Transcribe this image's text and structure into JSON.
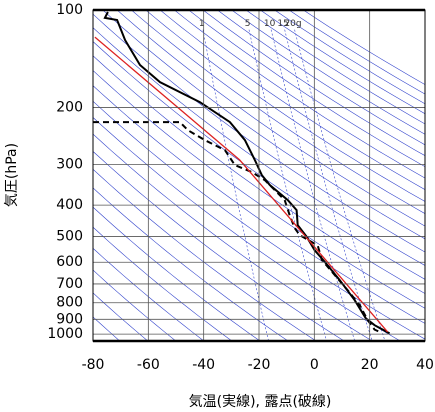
{
  "chart_data": {
    "type": "line",
    "y_label": "気圧(hPa)",
    "x_label": "気温(実線), 露点(破線)",
    "xlim": [
      -80,
      40
    ],
    "xticks": [
      -80,
      -60,
      -40,
      -20,
      0,
      20,
      40
    ],
    "ylim": [
      100,
      1050
    ],
    "y_log": true,
    "y_inverted": true,
    "yticks": [
      100,
      200,
      300,
      400,
      500,
      600,
      700,
      800,
      900,
      1000
    ],
    "grid": true,
    "mixing_ratio_lines": [
      1,
      5,
      10,
      15,
      {
        "value": 20,
        "label": "20g"
      }
    ],
    "mixing_ratio_color": "#3344cc",
    "series": [
      {
        "color": "#000000",
        "style": "solid",
        "x": [
          -74.6,
          -75.7,
          -71.3,
          -68.4,
          -63.0,
          -55.8,
          -41.4,
          -30.5,
          -25.1,
          -21.5,
          -19.0,
          -16.1,
          -9.6,
          -6.4,
          -6.0,
          -2.7,
          0.1,
          3.8,
          9.2,
          14.6,
          18.6,
          21.8,
          27.2
        ],
        "values": [
          101.4,
          105.8,
          107.4,
          123.8,
          147.8,
          166.9,
          192.4,
          221.7,
          251.9,
          290.0,
          323.1,
          346.6,
          385.8,
          414.4,
          461.0,
          502.0,
          550.9,
          598.8,
          681.5,
          785.6,
          893.6,
          938.5,
          994.9
        ]
      },
      {
        "color": "#000000",
        "style": "dashed",
        "x": [
          -80,
          -48.6,
          -45.7,
          -39.6,
          -32.3,
          -28.7,
          -22.6,
          -17.9,
          -10.7,
          -8.9,
          -7.1,
          -5.3,
          1.2,
          2.7,
          7.4,
          12.1,
          16.4,
          19.3,
          21.8,
          23.6
        ],
        "values": [
          221.7,
          221.7,
          234.8,
          251.9,
          270.8,
          301.0,
          316.2,
          334.7,
          385.8,
          429.9,
          470.9,
          494.9,
          532.6,
          590.3,
          657.4,
          733.2,
          813.5,
          904.9,
          968.3,
          984.5
        ]
      },
      {
        "color": "#dd2222",
        "style": "solid",
        "x": [
          -79.3,
          -27.0,
          26.5
        ],
        "values": [
          121.2,
          290.0,
          984.5
        ]
      }
    ]
  }
}
